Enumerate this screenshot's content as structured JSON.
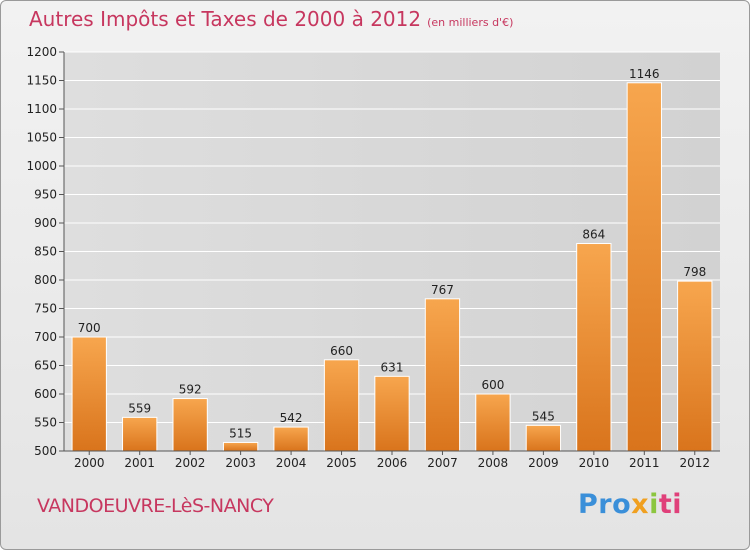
{
  "header": {
    "title": "Autres Impôts et Taxes de 2000 à 2012",
    "unit": "(en milliers d'€)"
  },
  "footer": {
    "commune": "VANDOEUVRE-LèS-NANCY",
    "logo": {
      "parts": [
        "Pro",
        "x",
        "i",
        "ti"
      ],
      "colors": [
        "#3a8fd9",
        "#f0a020",
        "#8cc63f",
        "#e0407a"
      ]
    }
  },
  "chart_data": {
    "type": "bar",
    "title": "Autres Impôts et Taxes de 2000 à 2012",
    "subtitle": "(en milliers d'€)",
    "xlabel": "",
    "ylabel": "",
    "categories": [
      "2000",
      "2001",
      "2002",
      "2003",
      "2004",
      "2005",
      "2006",
      "2007",
      "2008",
      "2009",
      "2010",
      "2011",
      "2012"
    ],
    "values": [
      700,
      559,
      592,
      515,
      542,
      660,
      631,
      767,
      600,
      545,
      864,
      1146,
      798
    ],
    "ylim": [
      500,
      1200
    ],
    "yticks": [
      500,
      550,
      600,
      650,
      700,
      750,
      800,
      850,
      900,
      950,
      1000,
      1050,
      1100,
      1150,
      1200
    ],
    "grid": true,
    "legend": "none",
    "bar_color": "#f0922e",
    "grid_color": "#ffffff",
    "axis_color": "#555555"
  }
}
